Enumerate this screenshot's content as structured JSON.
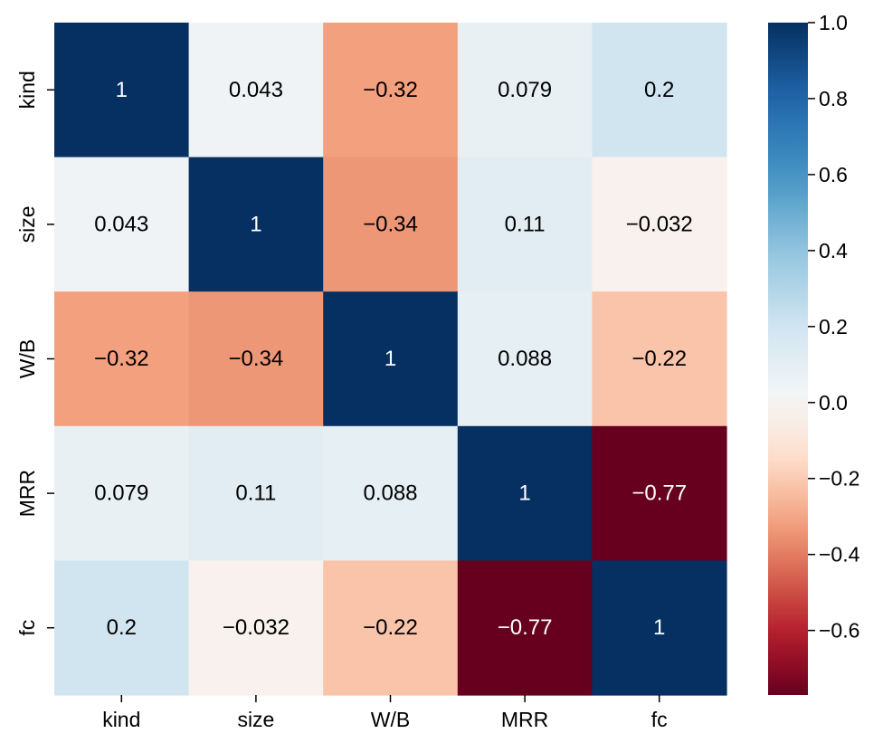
{
  "chart_data": {
    "type": "heatmap",
    "title": "",
    "xlabel": "",
    "ylabel": "",
    "x_categories": [
      "kind",
      "size",
      "W/B",
      "MRR",
      "fc"
    ],
    "y_categories": [
      "kind",
      "size",
      "W/B",
      "MRR",
      "fc"
    ],
    "values": [
      [
        1,
        0.043,
        -0.32,
        0.079,
        0.2
      ],
      [
        0.043,
        1,
        -0.34,
        0.11,
        -0.032
      ],
      [
        -0.32,
        -0.34,
        1,
        0.088,
        -0.22
      ],
      [
        0.079,
        0.11,
        0.088,
        1,
        -0.77
      ],
      [
        0.2,
        -0.032,
        -0.22,
        -0.77,
        1
      ]
    ],
    "labels": [
      [
        "1",
        "0.043",
        "−0.32",
        "0.079",
        "0.2"
      ],
      [
        "0.043",
        "1",
        "−0.34",
        "0.11",
        "−0.032"
      ],
      [
        "−0.32",
        "−0.34",
        "1",
        "0.088",
        "−0.22"
      ],
      [
        "0.079",
        "0.11",
        "0.088",
        "1",
        "−0.77"
      ],
      [
        "0.2",
        "−0.032",
        "−0.22",
        "−0.77",
        "1"
      ]
    ],
    "colormap": "RdBu",
    "vmin": -0.77,
    "vmax": 1.0,
    "colorbar": {
      "ticks": [
        1.0,
        0.8,
        0.6,
        0.4,
        0.2,
        0.0,
        -0.2,
        -0.4,
        -0.6
      ],
      "tick_labels": [
        "1.0",
        "0.8",
        "0.6",
        "0.4",
        "0.2",
        "0.0",
        "−0.2",
        "−0.4",
        "−0.6"
      ]
    }
  }
}
